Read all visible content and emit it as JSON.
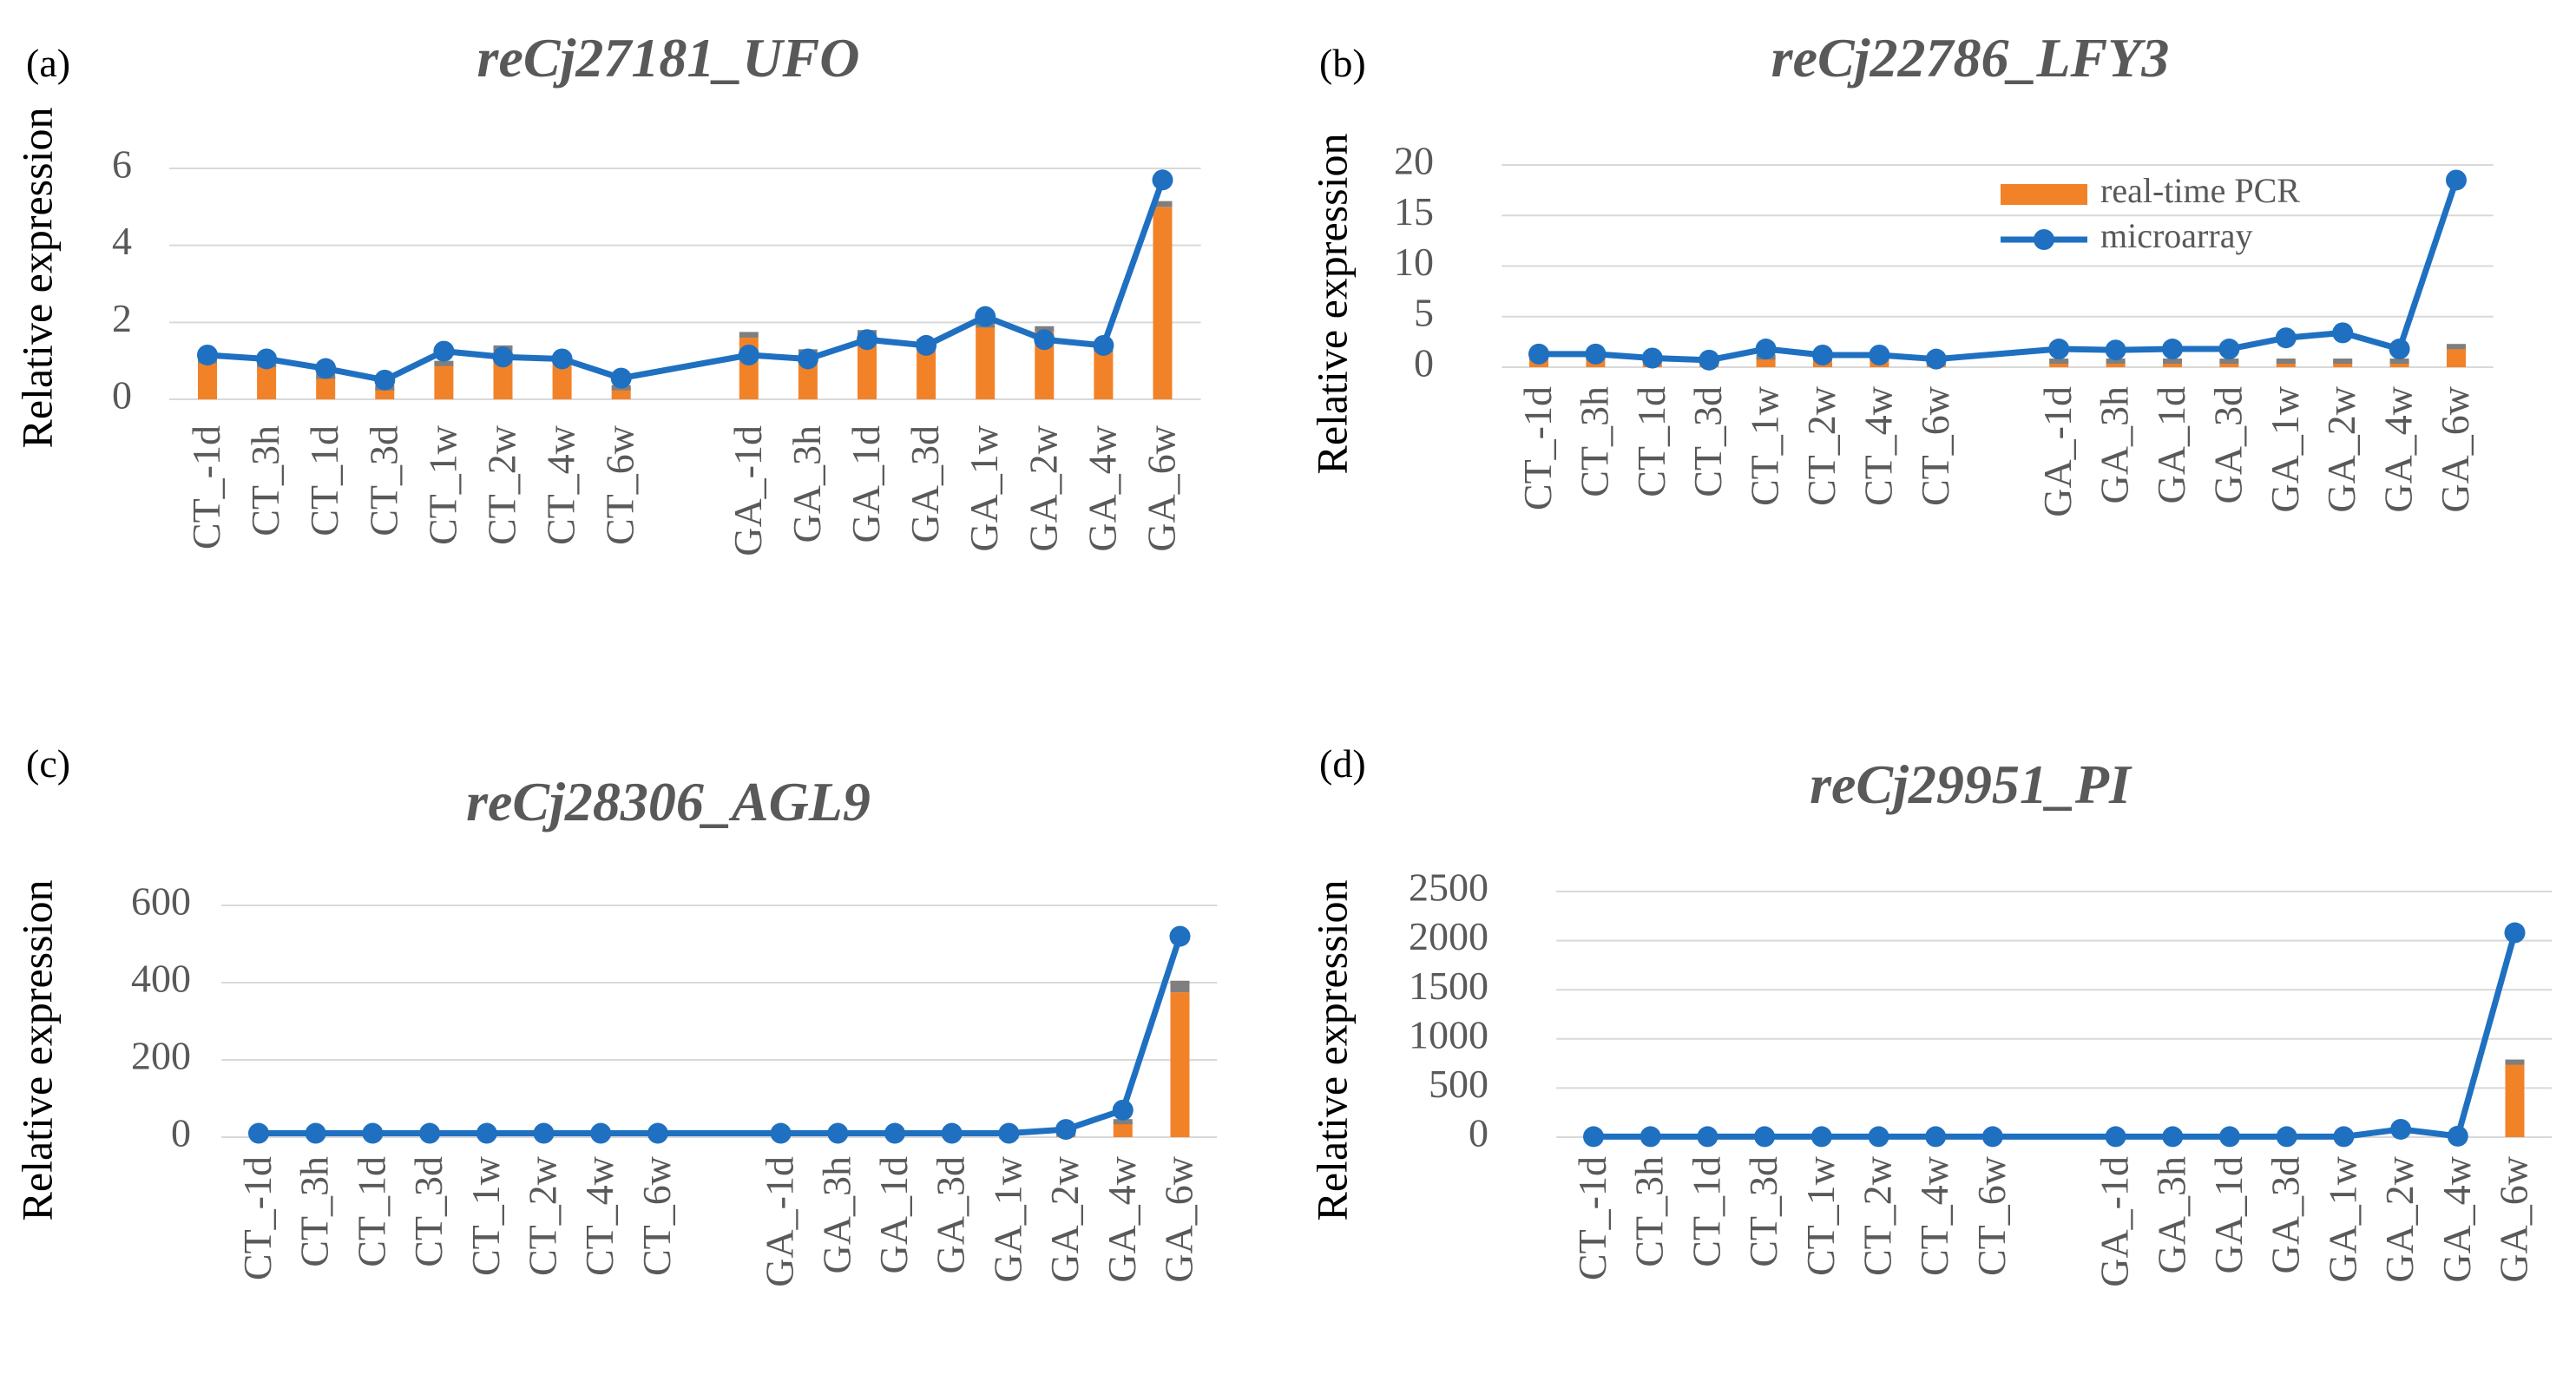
{
  "colors": {
    "bar": "#F28228",
    "line": "#1F70C1",
    "error": "#7F7F7F",
    "grid": "#D9D9D9",
    "tick_text": "#595959",
    "title_text": "#595959",
    "label_text": "#000000"
  },
  "legend": {
    "bar_label": "real-time PCR",
    "line_label": "microarray"
  },
  "chart_data": [
    {
      "panel_label": "(a)",
      "type": "bar+line",
      "title": "reCj27181_UFO",
      "ylabel": "Relative expression",
      "ylim": [
        0,
        6
      ],
      "yticks": [
        "0",
        "2",
        "4",
        "6"
      ],
      "categories": [
        "CT_-1d",
        "CT_3h",
        "CT_1d",
        "CT_3d",
        "CT_1w",
        "CT_2w",
        "CT_4w",
        "CT_6w",
        "GA_-1d",
        "GA_3h",
        "GA_1d",
        "GA_3d",
        "GA_1w",
        "GA_2w",
        "GA_4w",
        "GA_6w"
      ],
      "grid": true,
      "legend_shown": false,
      "series": [
        {
          "name": "real-time PCR",
          "kind": "bar",
          "values": [
            1.0,
            0.9,
            0.6,
            0.3,
            0.9,
            1.3,
            1.0,
            0.3,
            1.6,
            1.2,
            1.7,
            1.5,
            1.9,
            1.8,
            1.3,
            5.0
          ],
          "errors": [
            0.05,
            0.05,
            0.05,
            0.05,
            0.1,
            0.1,
            0.05,
            0.05,
            0.15,
            0.1,
            0.1,
            0.05,
            0.1,
            0.1,
            0.05,
            0.15
          ]
        },
        {
          "name": "microarray",
          "kind": "line",
          "values": [
            1.15,
            1.05,
            0.8,
            0.5,
            1.25,
            1.1,
            1.05,
            0.55,
            1.15,
            1.05,
            1.55,
            1.4,
            2.15,
            1.55,
            1.4,
            5.7
          ]
        }
      ]
    },
    {
      "panel_label": "(b)",
      "type": "bar+line",
      "title": "reCj22786_LFY3",
      "ylabel": "Relative expression",
      "ylim": [
        0,
        20
      ],
      "yticks": [
        "0",
        "5",
        "10",
        "15",
        "20"
      ],
      "categories": [
        "CT_-1d",
        "CT_3h",
        "CT_1d",
        "CT_3d",
        "CT_1w",
        "CT_2w",
        "CT_4w",
        "CT_6w",
        "GA_-1d",
        "GA_3h",
        "GA_1d",
        "GA_3d",
        "GA_1w",
        "GA_2w",
        "GA_4w",
        "GA_6w"
      ],
      "grid": true,
      "legend_shown": true,
      "legend_position": "top-right",
      "series": [
        {
          "name": "real-time PCR",
          "kind": "bar",
          "values": [
            1.0,
            1.0,
            0.8,
            0.5,
            1.0,
            1.0,
            0.9,
            0.5,
            0.6,
            0.6,
            0.6,
            0.6,
            0.6,
            0.6,
            0.6,
            2.0
          ],
          "errors": [
            0.1,
            0.1,
            0.1,
            0.1,
            0.1,
            0.1,
            0.1,
            0.1,
            0.1,
            0.1,
            0.1,
            0.1,
            0.1,
            0.1,
            0.1,
            0.3
          ]
        },
        {
          "name": "microarray",
          "kind": "line",
          "values": [
            1.3,
            1.3,
            0.9,
            0.7,
            1.8,
            1.2,
            1.2,
            0.8,
            1.8,
            1.7,
            1.8,
            1.8,
            2.9,
            3.4,
            1.8,
            18.5
          ]
        }
      ]
    },
    {
      "panel_label": "(c)",
      "type": "bar+line",
      "title": "reCj28306_AGL9",
      "ylabel": "Relative expression",
      "ylim": [
        0,
        600
      ],
      "yticks": [
        "0",
        "200",
        "400",
        "600"
      ],
      "categories": [
        "CT_-1d",
        "CT_3h",
        "CT_1d",
        "CT_3d",
        "CT_1w",
        "CT_2w",
        "CT_4w",
        "CT_6w",
        "GA_-1d",
        "GA_3h",
        "GA_1d",
        "GA_3d",
        "GA_1w",
        "GA_2w",
        "GA_4w",
        "GA_6w"
      ],
      "grid": true,
      "legend_shown": false,
      "series": [
        {
          "name": "real-time PCR",
          "kind": "bar",
          "values": [
            1,
            1,
            1,
            1,
            1,
            1,
            1,
            1,
            1,
            1,
            1,
            1,
            2,
            10,
            40,
            375
          ],
          "errors": [
            0,
            0,
            0,
            0,
            0,
            0,
            0,
            0,
            0,
            0,
            0,
            0,
            1,
            3,
            5,
            30
          ]
        },
        {
          "name": "microarray",
          "kind": "line",
          "values": [
            10,
            10,
            10,
            10,
            10,
            10,
            10,
            10,
            10,
            10,
            10,
            10,
            10,
            20,
            70,
            520
          ]
        }
      ]
    },
    {
      "panel_label": "(d)",
      "type": "bar+line",
      "title": "reCj29951_PI",
      "ylabel": "Relative expression",
      "ylim": [
        0,
        2500
      ],
      "yticks": [
        "0",
        "500",
        "1000",
        "1500",
        "2000",
        "2500"
      ],
      "categories": [
        "CT_-1d",
        "CT_3h",
        "CT_1d",
        "CT_3d",
        "CT_1w",
        "CT_2w",
        "CT_4w",
        "CT_6w",
        "GA_-1d",
        "GA_3h",
        "GA_1d",
        "GA_3d",
        "GA_1w",
        "GA_2w",
        "GA_4w",
        "GA_6w"
      ],
      "grid": true,
      "legend_shown": false,
      "series": [
        {
          "name": "real-time PCR",
          "kind": "bar",
          "values": [
            1,
            1,
            1,
            1,
            1,
            1,
            1,
            1,
            1,
            1,
            1,
            1,
            1,
            1,
            5,
            750
          ],
          "errors": [
            0,
            0,
            0,
            0,
            0,
            0,
            0,
            0,
            0,
            0,
            0,
            0,
            0,
            0,
            2,
            40
          ]
        },
        {
          "name": "microarray",
          "kind": "line",
          "values": [
            5,
            5,
            5,
            5,
            5,
            5,
            5,
            5,
            5,
            5,
            5,
            5,
            5,
            80,
            10,
            2080
          ]
        }
      ]
    }
  ]
}
